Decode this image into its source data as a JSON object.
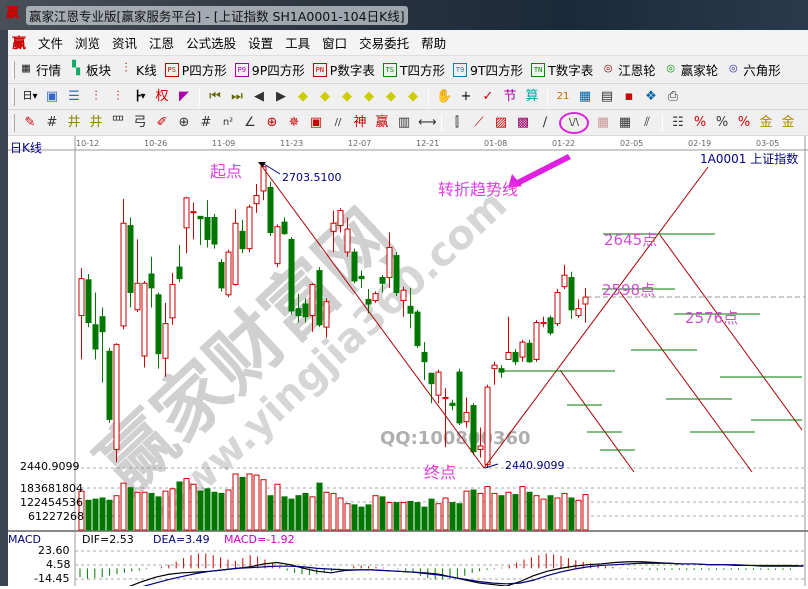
{
  "window": {
    "title": "赢家江恩专业版[赢家服务平台] - [上证指数  SH1A0001-104日K线]",
    "logo": "赢"
  },
  "menu": [
    "文件",
    "浏览",
    "资讯",
    "江恩",
    "公式选股",
    "设置",
    "工具",
    "窗口",
    "交易委托",
    "帮助"
  ],
  "toolbar1": [
    {
      "icon": "grid-icon",
      "glyph": "▦",
      "label": "行情",
      "color": "#333"
    },
    {
      "icon": "blocks-icon",
      "glyph": "▚",
      "label": "板块",
      "color": "#1a6"
    },
    {
      "icon": "kline-icon",
      "glyph": "⫶",
      "label": "K线",
      "color": "#c00"
    },
    {
      "icon": "ps-icon",
      "glyph": "PS",
      "label": "P四方形",
      "color": "#c00"
    },
    {
      "icon": "p9-icon",
      "glyph": "P9",
      "label": "9P四方形",
      "color": "#a0a"
    },
    {
      "icon": "pn-icon",
      "glyph": "PN",
      "label": "P数字表",
      "color": "#c00"
    },
    {
      "icon": "ts-icon",
      "glyph": "TS",
      "label": "T四方形",
      "color": "#080"
    },
    {
      "icon": "t9-icon",
      "glyph": "T9",
      "label": "9T四方形",
      "color": "#08a"
    },
    {
      "icon": "tn-icon",
      "glyph": "TN",
      "label": "T数字表",
      "color": "#080"
    },
    {
      "icon": "gann-wheel-icon",
      "glyph": "◎",
      "label": "江恩轮",
      "color": "#a33"
    },
    {
      "icon": "winner-wheel-icon",
      "glyph": "◎",
      "label": "赢家轮",
      "color": "#3a3"
    },
    {
      "icon": "hexagon-icon",
      "glyph": "◎",
      "label": "六角形",
      "color": "#55c"
    }
  ],
  "toolbar2": [
    {
      "icon": "day-period-icon",
      "glyph": "日▾",
      "color": "#000"
    },
    {
      "icon": "window-icon",
      "glyph": "▣",
      "color": "#36c"
    },
    {
      "icon": "list-icon",
      "glyph": "☰",
      "color": "#36c"
    },
    {
      "icon": "indicator3-icon",
      "glyph": "⫶",
      "color": "#c00"
    },
    {
      "icon": "indicator9-icon",
      "glyph": "⫶",
      "color": "#c00"
    },
    {
      "icon": "bar-type-icon",
      "glyph": "┣▾",
      "color": "#000"
    },
    {
      "icon": "weight-icon",
      "glyph": "权",
      "color": "#c00"
    },
    {
      "icon": "color-icon",
      "glyph": "◤",
      "color": "#a0a"
    },
    {
      "sep": true
    },
    {
      "icon": "first-icon",
      "glyph": "⏮",
      "color": "#660"
    },
    {
      "icon": "last-icon",
      "glyph": "⏭",
      "color": "#660"
    },
    {
      "icon": "left-icon",
      "glyph": "◀",
      "color": "#333"
    },
    {
      "icon": "right-icon",
      "glyph": "▶",
      "color": "#333"
    },
    {
      "icon": "zoom-left-icon",
      "glyph": "◆",
      "color": "#cc0"
    },
    {
      "icon": "zoom-right-icon",
      "glyph": "◆",
      "color": "#cc0"
    },
    {
      "icon": "expand-icon",
      "glyph": "◆",
      "color": "#cc0"
    },
    {
      "icon": "shrink-icon",
      "glyph": "◆",
      "color": "#cc0"
    },
    {
      "icon": "fit-icon",
      "glyph": "◆",
      "color": "#cc0"
    },
    {
      "icon": "move-icon",
      "glyph": "◆",
      "color": "#cc0"
    },
    {
      "sep": true
    },
    {
      "icon": "hand-icon",
      "glyph": "✋",
      "color": "#333"
    },
    {
      "icon": "crosshair-icon",
      "glyph": "+",
      "color": "#000"
    },
    {
      "icon": "draw-icon",
      "glyph": "✓",
      "color": "#c00"
    },
    {
      "icon": "ruler-icon",
      "glyph": "节",
      "color": "#a0a"
    },
    {
      "icon": "calc-icon",
      "glyph": "算",
      "color": "#0aa"
    },
    {
      "sep": true
    },
    {
      "icon": "calendar-icon",
      "glyph": "21",
      "color": "#c60"
    },
    {
      "icon": "calculator-icon",
      "glyph": "▦",
      "color": "#06a"
    },
    {
      "icon": "notes-icon",
      "glyph": "▤",
      "color": "#333"
    },
    {
      "icon": "save-icon",
      "glyph": "▪",
      "color": "#c00"
    },
    {
      "icon": "network-icon",
      "glyph": "❖",
      "color": "#06a"
    },
    {
      "icon": "print-icon",
      "glyph": "⎙",
      "color": "#333"
    }
  ],
  "toolbar3": [
    {
      "icon": "pen-icon",
      "glyph": "✎",
      "color": "#c00"
    },
    {
      "icon": "grid-lines-icon",
      "glyph": "#",
      "color": "#333"
    },
    {
      "icon": "gold-grid-icon",
      "glyph": "井",
      "color": "#880"
    },
    {
      "icon": "gold-grid2-icon",
      "glyph": "井",
      "color": "#880"
    },
    {
      "icon": "fib-icon",
      "glyph": "罒",
      "color": "#333"
    },
    {
      "icon": "cycle-icon",
      "glyph": "弓",
      "color": "#333"
    },
    {
      "icon": "brush-icon",
      "glyph": "✐",
      "color": "#c00"
    },
    {
      "icon": "circle-grid-icon",
      "glyph": "⊕",
      "color": "#333"
    },
    {
      "icon": "parallel-icon",
      "glyph": "#",
      "color": "#333"
    },
    {
      "icon": "n2-icon",
      "glyph": "n²",
      "color": "#333"
    },
    {
      "icon": "angle-icon",
      "glyph": "∠",
      "color": "#333"
    },
    {
      "icon": "target-icon",
      "glyph": "⊕",
      "color": "#c00"
    },
    {
      "icon": "star-icon",
      "glyph": "✵",
      "color": "#c00"
    },
    {
      "icon": "box-icon",
      "glyph": "▣",
      "color": "#c00"
    },
    {
      "icon": "lines-icon",
      "glyph": "//",
      "color": "#333"
    },
    {
      "icon": "shen-icon",
      "glyph": "神",
      "color": "#c00"
    },
    {
      "icon": "ying-icon",
      "glyph": "赢",
      "color": "#c00"
    },
    {
      "icon": "calendar-grid-icon",
      "glyph": "▥",
      "color": "#333"
    },
    {
      "icon": "width-icon",
      "glyph": "⟷",
      "color": "#333"
    },
    {
      "sep": true
    },
    {
      "icon": "vertical-icon",
      "glyph": "⫿",
      "color": "#333"
    },
    {
      "icon": "fan-icon",
      "glyph": "⟋",
      "color": "#c00"
    },
    {
      "icon": "square-icon",
      "glyph": "▨",
      "color": "#c00"
    },
    {
      "icon": "square2-icon",
      "glyph": "▩",
      "color": "#906"
    },
    {
      "icon": "line-icon",
      "glyph": "∕",
      "color": "#333"
    },
    {
      "icon": "turning-trend-line-icon",
      "glyph": "\\/\\",
      "color": "#333",
      "highlight": true
    },
    {
      "icon": "grid-box-icon",
      "glyph": "▦",
      "color": "#c99"
    },
    {
      "icon": "grid-box2-icon",
      "glyph": "▦",
      "color": "#333"
    },
    {
      "icon": "hatch-icon",
      "glyph": "⫽",
      "color": "#333"
    },
    {
      "sep": true
    },
    {
      "icon": "table-icon",
      "glyph": "☷",
      "color": "#333"
    },
    {
      "icon": "percent-up-icon",
      "glyph": "%",
      "color": "#c00"
    },
    {
      "icon": "percent-icon",
      "glyph": "%",
      "color": "#333"
    },
    {
      "icon": "percent-list-icon",
      "glyph": "%",
      "color": "#c00"
    },
    {
      "icon": "gold-icon",
      "glyph": "金",
      "color": "#a80"
    },
    {
      "icon": "gold2-icon",
      "glyph": "金",
      "color": "#a80"
    }
  ],
  "chart": {
    "period_label": "日K线",
    "symbol_label": "1A0001  上证指数",
    "date_ticks": [
      "10-12",
      "10-26",
      "11-09",
      "11-23",
      "12-07",
      "12-21",
      "01-08",
      "01-22",
      "02-05",
      "02-19",
      "03-05"
    ],
    "high_label": "2703.5100",
    "low_label": "2440.9099",
    "low_axis_label": "2440.9099",
    "start_label": "起点",
    "end_label": "终点",
    "trend_label": "转折趋势线",
    "level_labels": [
      "2645点",
      "2598点",
      "2576点"
    ],
    "volume_ticks": [
      "183681804",
      "122454536",
      "61227268"
    ],
    "colors": {
      "up": "#cc0000",
      "down": "#007700",
      "annotation": "#e040e0",
      "trend": "#aa0000",
      "level": "#007700"
    },
    "watermark": {
      "brand": "赢家财富网",
      "url": "www.yingjia360.com",
      "qq": "QQ:100800360"
    }
  },
  "chart_data": {
    "type": "candlestick",
    "ylim": [
      2439,
      2717
    ],
    "ohlc": [
      [
        2573,
        2614,
        2535,
        2605
      ],
      [
        2604,
        2609,
        2563,
        2567
      ],
      [
        2565,
        2593,
        2535,
        2544
      ],
      [
        2572,
        2580,
        2515,
        2559
      ],
      [
        2542,
        2545,
        2480,
        2483
      ],
      [
        2457,
        2549,
        2446,
        2548
      ],
      [
        2564,
        2674,
        2561,
        2653
      ],
      [
        2651,
        2658,
        2580,
        2593
      ],
      [
        2578,
        2639,
        2576,
        2601
      ],
      [
        2538,
        2603,
        2528,
        2601
      ],
      [
        2609,
        2624,
        2580,
        2597
      ],
      [
        2591,
        2593,
        2527,
        2540
      ],
      [
        2536,
        2584,
        2520,
        2566
      ],
      [
        2571,
        2610,
        2565,
        2600
      ],
      [
        2615,
        2634,
        2602,
        2605
      ],
      [
        2649,
        2676,
        2627,
        2675
      ],
      [
        2663,
        2671,
        2639,
        2663
      ],
      [
        2659,
        2659,
        2634,
        2657
      ],
      [
        2658,
        2673,
        2632,
        2639
      ],
      [
        2658,
        2661,
        2631,
        2635
      ],
      [
        2619,
        2622,
        2594,
        2597
      ],
      [
        2591,
        2630,
        2589,
        2628
      ],
      [
        2600,
        2665,
        2599,
        2653
      ],
      [
        2646,
        2656,
        2627,
        2631
      ],
      [
        2631,
        2669,
        2628,
        2667
      ],
      [
        2670,
        2687,
        2662,
        2677
      ],
      [
        2681,
        2703.51,
        2673,
        2702
      ],
      [
        2684,
        2689,
        2642,
        2645
      ],
      [
        2618,
        2652,
        2615,
        2650
      ],
      [
        2654,
        2658,
        2643,
        2644
      ],
      [
        2639,
        2641,
        2574,
        2577
      ],
      [
        2579,
        2592,
        2567,
        2573
      ],
      [
        2583,
        2588,
        2567,
        2572
      ],
      [
        2573,
        2601,
        2559,
        2600
      ],
      [
        2612,
        2615,
        2563,
        2565
      ],
      [
        2563,
        2588,
        2554,
        2585
      ],
      [
        2646,
        2664,
        2628,
        2653
      ],
      [
        2651,
        2666,
        2645,
        2664
      ],
      [
        2628,
        2658,
        2624,
        2648
      ],
      [
        2628,
        2631,
        2601,
        2603
      ],
      [
        2607,
        2612,
        2597,
        2605
      ],
      [
        2587,
        2596,
        2575,
        2583
      ],
      [
        2586,
        2594,
        2584,
        2592
      ],
      [
        2606,
        2608,
        2593,
        2601
      ],
      [
        2606,
        2645,
        2597,
        2632
      ],
      [
        2625,
        2628,
        2590,
        2593
      ],
      [
        2586,
        2598,
        2572,
        2595
      ],
      [
        2581,
        2597,
        2562,
        2575
      ],
      [
        2576,
        2578,
        2545,
        2547
      ],
      [
        2541,
        2550,
        2517,
        2533
      ],
      [
        2523,
        2523,
        2497,
        2514
      ],
      [
        2504,
        2526,
        2497,
        2524
      ],
      [
        2501,
        2510,
        2459,
        2502
      ],
      [
        2497,
        2500,
        2491,
        2495
      ],
      [
        2524,
        2527,
        2478,
        2480
      ],
      [
        2481,
        2502,
        2476,
        2489
      ],
      [
        2495,
        2497,
        2452,
        2455
      ],
      [
        2457,
        2476,
        2450,
        2460
      ],
      [
        2444,
        2513,
        2440.91,
        2511
      ],
      [
        2527,
        2533,
        2513,
        2530
      ],
      [
        2527,
        2530,
        2519,
        2524
      ],
      [
        2535,
        2572,
        2535,
        2541
      ],
      [
        2541,
        2544,
        2530,
        2533
      ],
      [
        2537,
        2552,
        2533,
        2550
      ],
      [
        2549,
        2552,
        2532,
        2533
      ],
      [
        2535,
        2569,
        2533,
        2567
      ],
      [
        2566,
        2572,
        2563,
        2567
      ],
      [
        2571,
        2573,
        2556,
        2558
      ],
      [
        2566,
        2596,
        2564,
        2593
      ],
      [
        2598,
        2617,
        2596,
        2608
      ],
      [
        2606,
        2611,
        2570,
        2578
      ],
      [
        2573,
        2587,
        2571,
        2579
      ],
      [
        2583,
        2597,
        2567,
        2589
      ]
    ],
    "volume": [
      170000000,
      130000000,
      135000000,
      140000000,
      130000000,
      150000000,
      205000000,
      185000000,
      165000000,
      165000000,
      160000000,
      145000000,
      170000000,
      180000000,
      210000000,
      225000000,
      200000000,
      170000000,
      180000000,
      165000000,
      160000000,
      175000000,
      245000000,
      230000000,
      245000000,
      240000000,
      220000000,
      150000000,
      200000000,
      145000000,
      135000000,
      150000000,
      160000000,
      145000000,
      205000000,
      165000000,
      160000000,
      140000000,
      115000000,
      110000000,
      100000000,
      110000000,
      150000000,
      145000000,
      120000000,
      120000000,
      120000000,
      125000000,
      120000000,
      100000000,
      135000000,
      115000000,
      140000000,
      120000000,
      115000000,
      170000000,
      175000000,
      160000000,
      190000000,
      160000000,
      150000000,
      165000000,
      155000000,
      190000000,
      165000000,
      150000000,
      135000000,
      150000000,
      140000000,
      160000000,
      140000000,
      130000000,
      155000000
    ],
    "volume_ylim": [
      0,
      250000000
    ],
    "macd": {
      "dif": 2.53,
      "dea": 3.49,
      "macd": -1.92,
      "ticks": [
        23.6,
        4.58,
        -14.45
      ],
      "labels": {
        "name": "MACD",
        "dif": "DIF=2.53",
        "dea": "DEA=3.49",
        "macd": "MACD=-1.92"
      },
      "histogram": [
        -12,
        -14,
        -13,
        -12,
        -10,
        -8,
        -6,
        -4,
        -3,
        -1,
        0,
        2,
        5,
        9,
        14,
        18,
        20,
        20,
        18,
        15,
        12,
        10,
        14,
        18,
        16,
        12,
        8,
        2,
        -3,
        -6,
        -8,
        -9,
        -8,
        -6,
        -4,
        -2,
        0,
        3,
        4,
        3,
        2,
        1,
        0,
        -1,
        -3,
        -6,
        -10,
        -13,
        -15,
        -15,
        -14,
        -12,
        -10,
        -6,
        -4,
        -2,
        -1,
        1,
        4,
        8,
        12,
        15,
        18,
        20,
        19,
        17,
        14,
        11,
        9,
        7,
        5,
        3,
        2,
        1,
        -1,
        -1,
        -1,
        -2,
        -2,
        -2,
        -2,
        -2,
        -2,
        -2,
        -2,
        -2,
        -2,
        -2,
        -2,
        -2,
        -2,
        -2,
        -2,
        -2,
        -2,
        -2,
        -2
      ],
      "dif_line": [
        -40,
        -35,
        -30,
        -25,
        -18,
        -12,
        -8,
        -6,
        -5,
        -4,
        -2,
        0,
        2,
        6,
        8,
        5,
        0,
        -4,
        -6,
        -3,
        -2,
        -2,
        -3,
        -4,
        -5,
        -6,
        -8,
        -12,
        -16,
        -20,
        -22,
        -24,
        -18,
        -10,
        -4,
        0,
        3,
        5,
        6,
        8,
        9,
        9,
        8,
        7,
        6,
        6,
        5,
        5,
        4,
        4,
        3,
        3,
        3,
        3
      ],
      "dea_line": [
        -45,
        -40,
        -35,
        -30,
        -25,
        -20,
        -15,
        -11,
        -7,
        -4,
        -2,
        0,
        1,
        2,
        3,
        3,
        2,
        0,
        -1,
        -2,
        -2,
        -2,
        -3,
        -4,
        -5,
        -7,
        -9,
        -12,
        -15,
        -18,
        -20,
        -21,
        -20,
        -16,
        -10,
        -5,
        -1,
        2,
        4,
        5,
        6,
        7,
        7,
        7,
        6,
        6,
        5,
        5,
        5,
        4,
        4,
        4,
        4,
        3.5
      ]
    }
  }
}
